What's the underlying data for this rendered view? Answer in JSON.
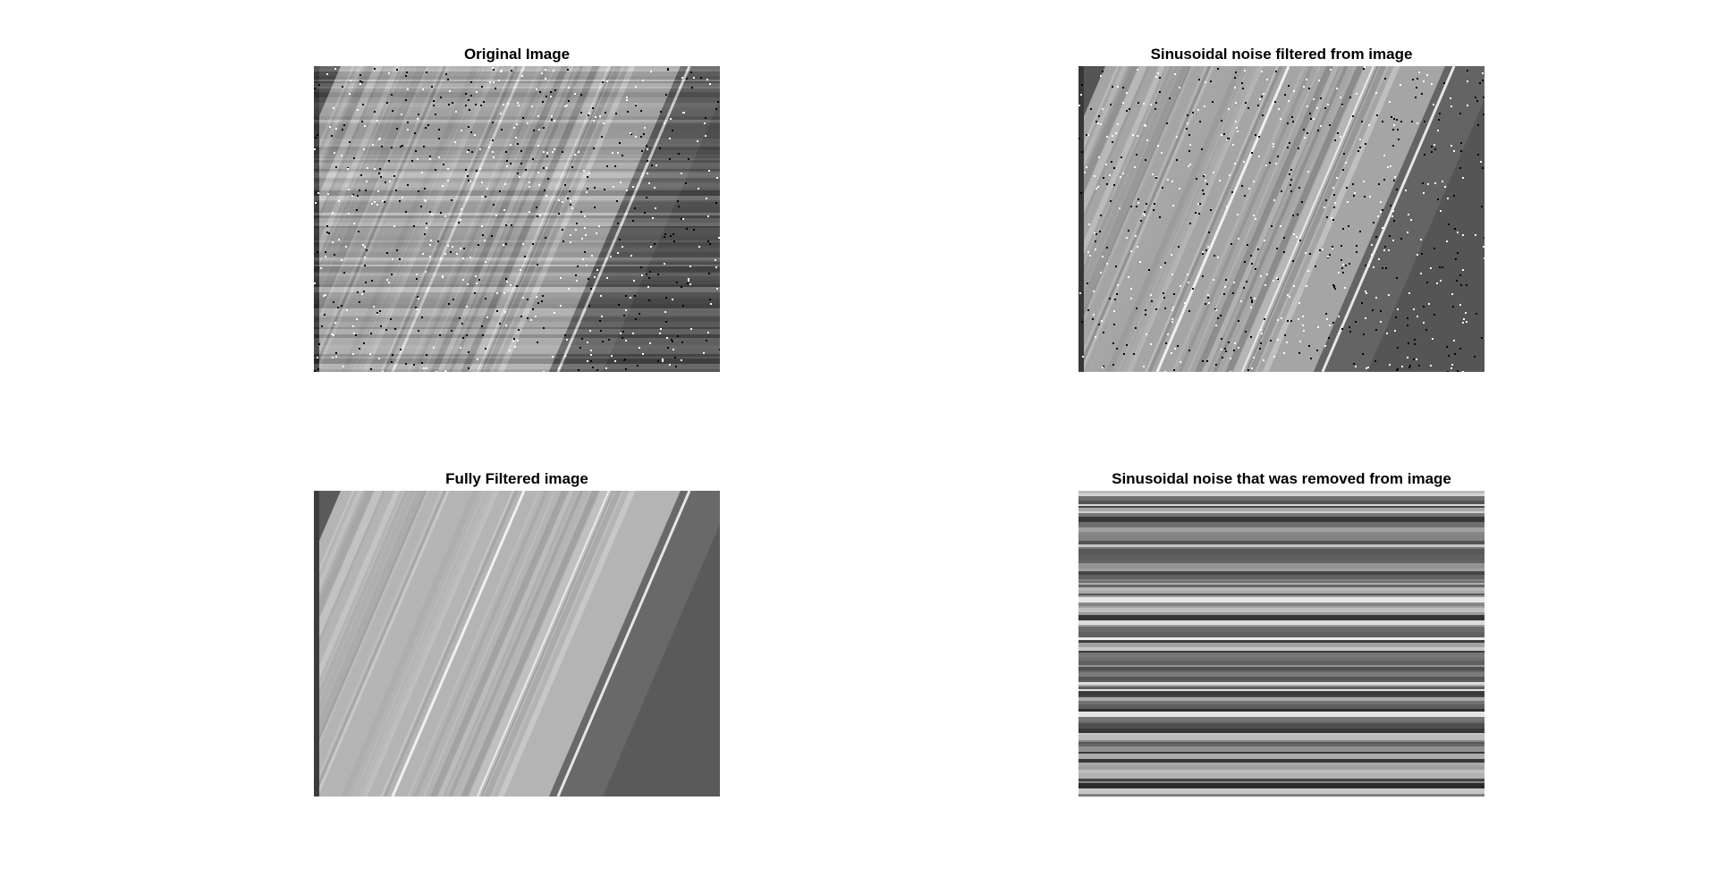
{
  "panels": [
    {
      "title": "Original Image",
      "has_noise_specks": true,
      "has_horizontal_banding": true
    },
    {
      "title": "Sinusoidal noise filtered from image",
      "has_noise_specks": true,
      "has_horizontal_banding": false
    },
    {
      "title": "Fully Filtered image",
      "has_noise_specks": false,
      "has_horizontal_banding": false
    },
    {
      "title": "Sinusoidal noise that was removed from image",
      "has_noise_specks": false,
      "has_horizontal_banding": true
    }
  ],
  "colors": {
    "background": "#ffffff",
    "title_text": "#000000"
  }
}
